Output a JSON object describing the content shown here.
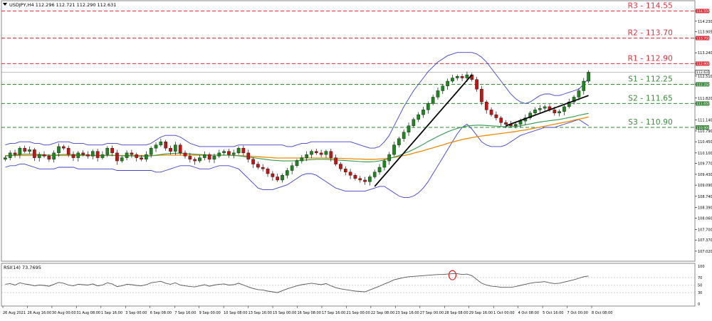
{
  "header": {
    "symbol_info": "USDJPY,H4  112.296 112.721 112.290 112.631"
  },
  "rsi_panel": {
    "label": "RSI(14) 73.7695",
    "levels": [
      "100",
      "70",
      "50",
      "30",
      "0"
    ]
  },
  "colors": {
    "support": "#3a8a3a",
    "resistance": "#e0303a",
    "bull_candle": "#1a8a1a",
    "bear_candle": "#d01010",
    "bollinger": "#3f3fd0",
    "ma_fast": "#2e9a4a",
    "ma_slow": "#f08a00",
    "trendline": "#000000",
    "rsi": "#555555",
    "rsi_marker": "#e02020"
  },
  "chart_data": {
    "type": "candlestick",
    "title": "USDJPY,H4",
    "ylim": [
      106.75,
      114.85
    ],
    "y_ticks": [
      "114.55",
      "114.230",
      "113.905",
      "113.70",
      "113.240",
      "112.90",
      "112.510",
      "112.25",
      "111.820",
      "111.65",
      "111.140",
      "110.790",
      "110.450",
      "110.100",
      "109.770",
      "109.430",
      "109.090",
      "108.740",
      "108.390",
      "108.060",
      "107.700",
      "107.370",
      "107.020"
    ],
    "x_ticks": [
      "26 Aug 2021",
      "26 Aug 16:00",
      "30 Aug 00:00",
      "31 Aug 08:00",
      "1 Sep 16:00",
      "3 Sep 00:00",
      "6 Sep 08:00",
      "7 Sep 16:00",
      "9 Sep 00:00",
      "10 Sep 08:00",
      "13 Sep 16:00",
      "15 Sep 00:00",
      "16 Sep 08:00",
      "17 Sep 16:00",
      "21 Sep 00:00",
      "22 Sep 08:00",
      "23 Sep 16:00",
      "27 Sep 00:00",
      "28 Sep 08:00",
      "29 Sep 16:00",
      "1 Oct 00:00",
      "4 Oct 08:00",
      "5 Oct 16:00",
      "7 Oct 00:00",
      "8 Oct 08:00"
    ],
    "current_price": "112.631",
    "levels": [
      {
        "name": "R3",
        "value": 114.55,
        "label": "R3 - 114.55",
        "tag": "114.550",
        "kind": "resistance"
      },
      {
        "name": "R2",
        "value": 113.7,
        "label": "R2 - 113.70",
        "tag": "113.700",
        "kind": "resistance"
      },
      {
        "name": "R1",
        "value": 112.9,
        "label": "R1 - 112.90",
        "tag": "112.900",
        "kind": "resistance"
      },
      {
        "name": "S1",
        "value": 112.25,
        "label": "S1 - 112.25",
        "tag": "112.250",
        "kind": "support"
      },
      {
        "name": "S2",
        "value": 111.65,
        "label": "S2 - 111.65",
        "tag": "111.650",
        "kind": "support"
      },
      {
        "name": "S3",
        "value": 110.9,
        "label": "S3 - 110.90",
        "tag": "110.900",
        "kind": "support"
      }
    ],
    "price_series": [
      109.95,
      110.1,
      110.05,
      110.25,
      110.15,
      110.2,
      109.95,
      110.05,
      110.0,
      109.9,
      110.1,
      110.3,
      110.25,
      110.05,
      109.95,
      110.1,
      110.05,
      110.0,
      110.15,
      109.95,
      110.05,
      110.25,
      110.1,
      109.85,
      109.95,
      110.1,
      110.05,
      109.95,
      109.9,
      110.05,
      110.25,
      110.35,
      110.45,
      110.25,
      110.15,
      110.35,
      110.1,
      110.0,
      109.9,
      109.85,
      109.95,
      110.05,
      109.9,
      110.0,
      110.1,
      110.15,
      110.05,
      110.1,
      110.25,
      110.1,
      109.9,
      109.75,
      109.65,
      109.6,
      109.45,
      109.35,
      109.25,
      109.4,
      109.55,
      109.7,
      109.85,
      109.95,
      110.05,
      110.15,
      110.1,
      110.05,
      110.15,
      109.95,
      109.75,
      109.6,
      109.5,
      109.4,
      109.3,
      109.25,
      109.2,
      109.35,
      109.5,
      109.65,
      109.85,
      110.05,
      110.35,
      110.55,
      110.75,
      110.95,
      111.15,
      111.3,
      111.45,
      111.65,
      111.85,
      112.05,
      112.2,
      112.35,
      112.45,
      112.5,
      112.45,
      112.55,
      112.4,
      112.1,
      111.7,
      111.45,
      111.3,
      111.2,
      111.05,
      111.0,
      110.95,
      111.0,
      111.1,
      111.2,
      111.35,
      111.45,
      111.5,
      111.55,
      111.45,
      111.35,
      111.4,
      111.55,
      111.7,
      111.85,
      112.05,
      112.35,
      112.63
    ],
    "bollinger_upper": [
      110.35,
      110.4,
      110.4,
      110.45,
      110.45,
      110.45,
      110.4,
      110.4,
      110.35,
      110.35,
      110.4,
      110.45,
      110.45,
      110.45,
      110.4,
      110.4,
      110.4,
      110.35,
      110.35,
      110.35,
      110.35,
      110.4,
      110.4,
      110.4,
      110.35,
      110.35,
      110.35,
      110.35,
      110.35,
      110.35,
      110.4,
      110.5,
      110.6,
      110.65,
      110.65,
      110.65,
      110.6,
      110.5,
      110.4,
      110.35,
      110.3,
      110.3,
      110.3,
      110.3,
      110.3,
      110.3,
      110.3,
      110.3,
      110.35,
      110.35,
      110.35,
      110.35,
      110.35,
      110.35,
      110.35,
      110.35,
      110.35,
      110.35,
      110.3,
      110.3,
      110.35,
      110.4,
      110.4,
      110.45,
      110.45,
      110.45,
      110.45,
      110.45,
      110.45,
      110.45,
      110.45,
      110.45,
      110.4,
      110.35,
      110.3,
      110.25,
      110.25,
      110.3,
      110.45,
      110.65,
      110.95,
      111.25,
      111.55,
      111.8,
      112.05,
      112.25,
      112.45,
      112.65,
      112.8,
      112.95,
      113.05,
      113.15,
      113.2,
      113.25,
      113.25,
      113.25,
      113.25,
      113.2,
      113.1,
      112.95,
      112.75,
      112.55,
      112.35,
      112.15,
      111.95,
      111.8,
      111.7,
      111.65,
      111.7,
      111.8,
      111.9,
      111.95,
      111.95,
      111.9,
      111.9,
      111.95,
      112.0,
      112.05,
      112.1,
      112.25,
      112.45
    ],
    "bollinger_lower": [
      109.65,
      109.7,
      109.7,
      109.75,
      109.75,
      109.7,
      109.65,
      109.6,
      109.6,
      109.6,
      109.6,
      109.65,
      109.65,
      109.65,
      109.65,
      109.6,
      109.6,
      109.6,
      109.6,
      109.6,
      109.6,
      109.6,
      109.6,
      109.55,
      109.55,
      109.55,
      109.55,
      109.55,
      109.55,
      109.55,
      109.55,
      109.5,
      109.5,
      109.55,
      109.6,
      109.65,
      109.7,
      109.7,
      109.7,
      109.65,
      109.6,
      109.6,
      109.6,
      109.65,
      109.7,
      109.7,
      109.7,
      109.65,
      109.6,
      109.45,
      109.3,
      109.15,
      109.0,
      108.95,
      108.95,
      108.95,
      109.0,
      109.05,
      109.1,
      109.2,
      109.3,
      109.4,
      109.45,
      109.45,
      109.4,
      109.3,
      109.2,
      109.1,
      109.0,
      108.95,
      108.9,
      108.9,
      108.9,
      108.9,
      108.9,
      108.95,
      109.0,
      109.05,
      109.05,
      108.95,
      108.85,
      108.75,
      108.7,
      108.7,
      108.75,
      108.85,
      109.0,
      109.2,
      109.45,
      109.7,
      109.95,
      110.2,
      110.45,
      110.7,
      110.9,
      111.0,
      110.85,
      110.65,
      110.45,
      110.35,
      110.3,
      110.3,
      110.3,
      110.35,
      110.45,
      110.55,
      110.65,
      110.7,
      110.75,
      110.8,
      110.85,
      110.9,
      110.9,
      110.9,
      110.95,
      111.0,
      111.05,
      111.1,
      111.15,
      111.05,
      110.95
    ],
    "ma_fast": [
      110.0,
      110.02,
      110.03,
      110.05,
      110.06,
      110.06,
      110.06,
      110.05,
      110.04,
      110.03,
      110.03,
      110.04,
      110.05,
      110.05,
      110.05,
      110.04,
      110.04,
      110.03,
      110.03,
      110.02,
      110.02,
      110.03,
      110.03,
      110.02,
      110.01,
      110.01,
      110.01,
      110.0,
      110.0,
      110.0,
      110.01,
      110.03,
      110.05,
      110.07,
      110.08,
      110.09,
      110.09,
      110.08,
      110.07,
      110.06,
      110.05,
      110.04,
      110.03,
      110.03,
      110.03,
      110.03,
      110.03,
      110.02,
      110.01,
      109.99,
      109.97,
      109.95,
      109.93,
      109.91,
      109.89,
      109.87,
      109.86,
      109.85,
      109.85,
      109.85,
      109.86,
      109.87,
      109.88,
      109.89,
      109.9,
      109.9,
      109.9,
      109.89,
      109.88,
      109.87,
      109.86,
      109.85,
      109.84,
      109.83,
      109.82,
      109.82,
      109.83,
      109.85,
      109.88,
      109.92,
      109.97,
      110.02,
      110.08,
      110.14,
      110.21,
      110.29,
      110.37,
      110.46,
      110.54,
      110.62,
      110.69,
      110.76,
      110.82,
      110.87,
      110.91,
      110.94,
      110.96,
      110.97,
      110.97,
      110.96,
      110.95,
      110.94,
      110.93,
      110.92,
      110.92,
      110.93,
      110.95,
      110.98,
      111.01,
      111.04,
      111.07,
      111.09,
      111.11,
      111.13,
      111.15,
      111.18,
      111.21,
      111.24,
      111.28,
      111.31,
      111.34
    ],
    "ma_slow": [
      110.02,
      110.02,
      110.02,
      110.02,
      110.02,
      110.02,
      110.02,
      110.02,
      110.02,
      110.02,
      110.02,
      110.02,
      110.02,
      110.02,
      110.02,
      110.02,
      110.02,
      110.02,
      110.02,
      110.02,
      110.02,
      110.02,
      110.02,
      110.02,
      110.02,
      110.02,
      110.02,
      110.02,
      110.02,
      110.02,
      110.02,
      110.02,
      110.03,
      110.03,
      110.03,
      110.03,
      110.03,
      110.03,
      110.03,
      110.03,
      110.03,
      110.03,
      110.03,
      110.03,
      110.03,
      110.03,
      110.03,
      110.02,
      110.02,
      110.01,
      110.0,
      109.99,
      109.98,
      109.97,
      109.96,
      109.95,
      109.94,
      109.94,
      109.94,
      109.94,
      109.94,
      109.94,
      109.94,
      109.94,
      109.94,
      109.94,
      109.94,
      109.93,
      109.93,
      109.93,
      109.92,
      109.92,
      109.91,
      109.91,
      109.9,
      109.9,
      109.9,
      109.91,
      109.92,
      109.94,
      109.96,
      109.99,
      110.02,
      110.05,
      110.09,
      110.13,
      110.17,
      110.22,
      110.26,
      110.31,
      110.35,
      110.4,
      110.44,
      110.48,
      110.52,
      110.55,
      110.58,
      110.61,
      110.63,
      110.65,
      110.67,
      110.69,
      110.71,
      110.73,
      110.75,
      110.77,
      110.8,
      110.82,
      110.85,
      110.88,
      110.91,
      110.94,
      110.97,
      111.0,
      111.03,
      111.06,
      111.09,
      111.13,
      111.16,
      111.19,
      111.23
    ],
    "rsi_values": [
      52,
      54,
      50,
      56,
      53,
      51,
      48,
      50,
      49,
      47,
      52,
      57,
      55,
      50,
      48,
      52,
      51,
      50,
      53,
      48,
      50,
      56,
      53,
      46,
      48,
      52,
      51,
      49,
      48,
      51,
      56,
      58,
      60,
      55,
      52,
      56,
      50,
      48,
      46,
      45,
      48,
      51,
      47,
      50,
      52,
      53,
      50,
      51,
      55,
      50,
      45,
      41,
      38,
      37,
      34,
      32,
      30,
      35,
      40,
      44,
      48,
      51,
      53,
      55,
      53,
      51,
      54,
      48,
      43,
      40,
      38,
      36,
      34,
      33,
      32,
      37,
      42,
      47,
      53,
      58,
      64,
      67,
      70,
      72,
      73,
      74,
      75,
      76,
      77,
      78,
      78,
      79,
      80,
      80,
      78,
      79,
      75,
      65,
      55,
      50,
      47,
      46,
      44,
      44,
      44,
      46,
      49,
      52,
      55,
      57,
      58,
      59,
      56,
      54,
      55,
      58,
      61,
      64,
      68,
      72,
      74
    ],
    "trendlines": [
      {
        "from": [
          76,
          109.05
        ],
        "to": [
          96,
          112.55
        ]
      },
      {
        "from": [
          103,
          110.95
        ],
        "to": [
          120,
          111.9
        ]
      }
    ]
  }
}
